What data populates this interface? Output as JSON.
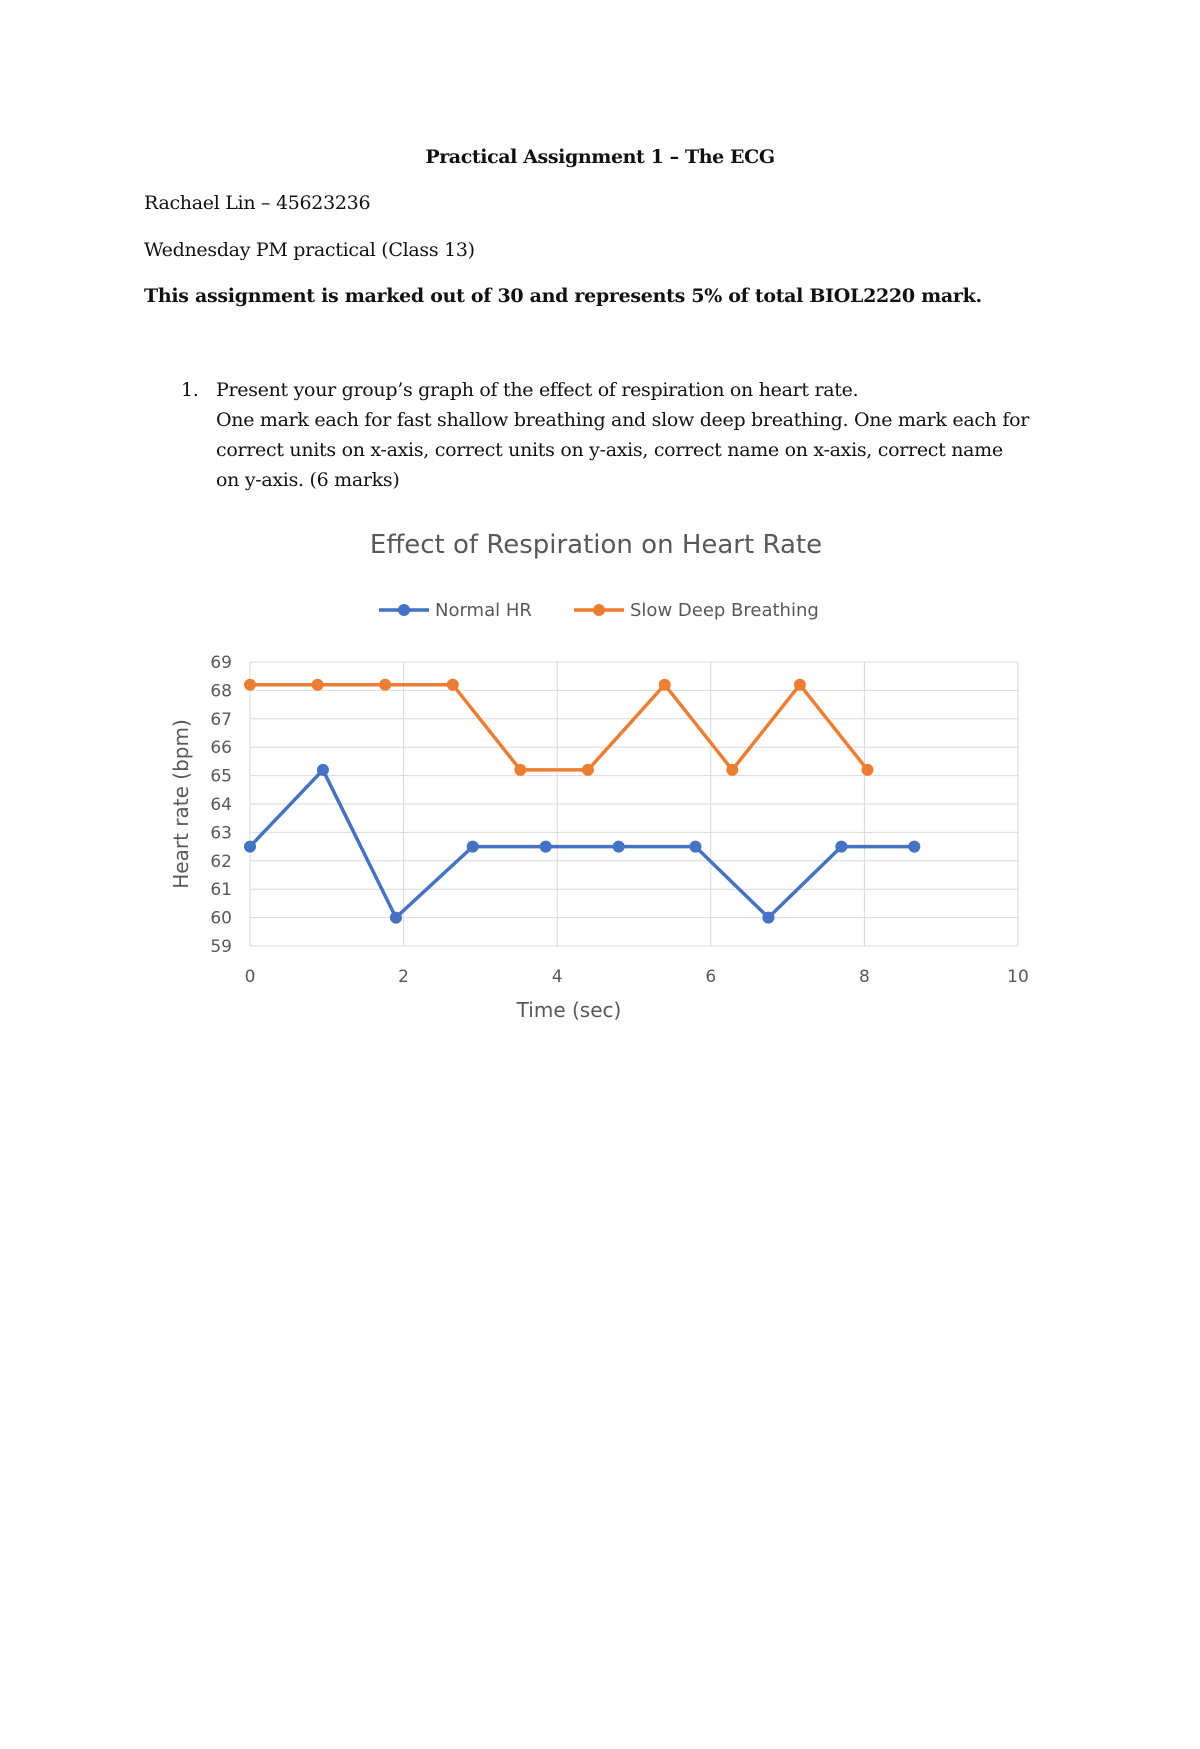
{
  "document": {
    "title": "Practical Assignment 1 – The ECG",
    "author_line": "Rachael Lin – 45623236",
    "class_line": "Wednesday PM practical (Class 13)",
    "marking_note": "This assignment is marked out of 30 and represents 5% of total BIOL2220 mark.",
    "question": {
      "number": "1.",
      "text_line1": "Present your group’s graph of the effect of respiration on heart rate.",
      "text_line2": "One mark each for fast shallow breathing and slow deep breathing. One mark each for",
      "text_line3": "correct units on x-axis, correct units on y-axis, correct name on x-axis, correct name",
      "text_line4": "on y-axis. (6 marks)"
    }
  },
  "chart_data": {
    "type": "line",
    "title": "Effect of Respiration on Heart Rate",
    "xlabel": "Time (sec)",
    "ylabel": "Heart rate (bpm)",
    "xlim": [
      0,
      10
    ],
    "ylim": [
      59,
      69
    ],
    "xticks": [
      "0",
      "2",
      "4",
      "6",
      "8",
      "10"
    ],
    "yticks": [
      "59",
      "60",
      "61",
      "62",
      "63",
      "64",
      "65",
      "66",
      "67",
      "68",
      "69"
    ],
    "grid": true,
    "legend_position": "top",
    "series": [
      {
        "name": "Normal HR",
        "color": "#4472C4",
        "points": [
          [
            0,
            62.5
          ],
          [
            0.95,
            65.2
          ],
          [
            1.9,
            60
          ],
          [
            2.9,
            62.5
          ],
          [
            3.85,
            62.5
          ],
          [
            4.8,
            62.5
          ],
          [
            5.8,
            62.5
          ],
          [
            6.75,
            60
          ],
          [
            7.7,
            62.5
          ],
          [
            8.65,
            62.5
          ]
        ]
      },
      {
        "name": "Slow Deep Breathing",
        "color": "#ED7D31",
        "points": [
          [
            0,
            68.2
          ],
          [
            0.88,
            68.2
          ],
          [
            1.76,
            68.2
          ],
          [
            2.64,
            68.2
          ],
          [
            3.52,
            65.2
          ],
          [
            4.4,
            65.2
          ],
          [
            5.4,
            68.2
          ],
          [
            6.28,
            65.2
          ],
          [
            7.16,
            68.2
          ],
          [
            8.04,
            65.2
          ]
        ]
      }
    ]
  }
}
